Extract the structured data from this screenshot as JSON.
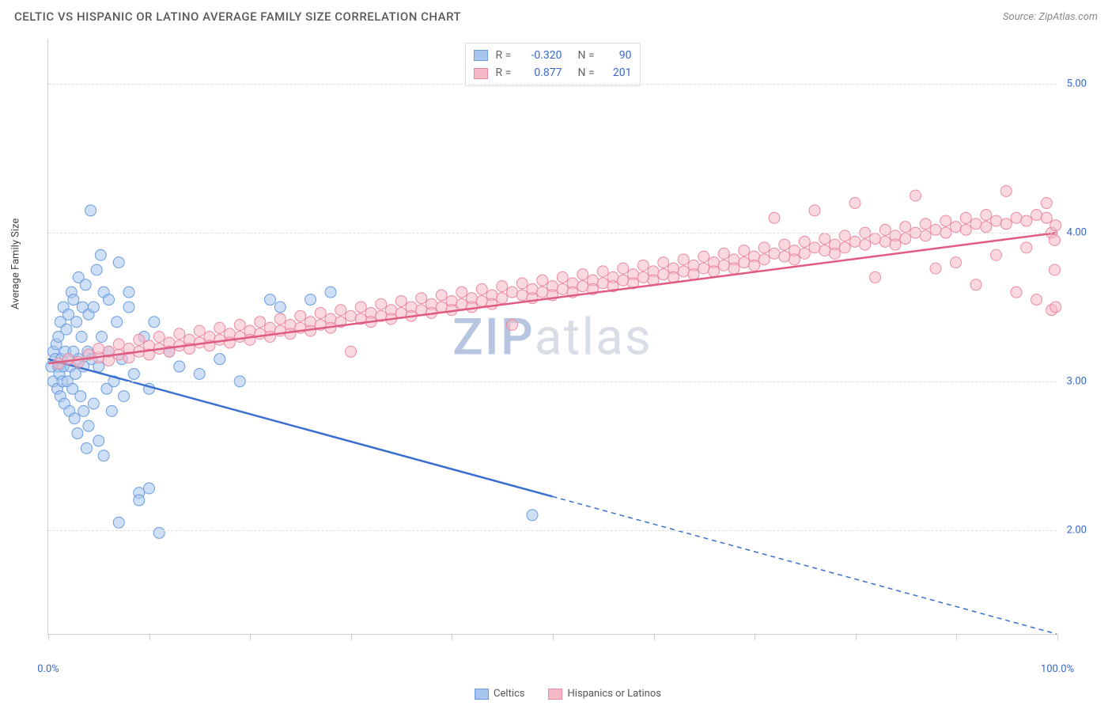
{
  "title": "CELTIC VS HISPANIC OR LATINO AVERAGE FAMILY SIZE CORRELATION CHART",
  "source": "Source: ZipAtlas.com",
  "ylabel": "Average Family Size",
  "watermark_zip": "ZIP",
  "watermark_atlas": "atlas",
  "chart": {
    "xlim": [
      0,
      100
    ],
    "ylim": [
      1.3,
      5.3
    ],
    "yticks": [
      2.0,
      3.0,
      4.0,
      5.0
    ],
    "ytick_labels": [
      "2.00",
      "3.00",
      "4.00",
      "5.00"
    ],
    "xtick_positions": [
      0,
      10,
      20,
      30,
      40,
      50,
      60,
      70,
      80,
      90,
      100
    ],
    "xtick_labels_left": "0.0%",
    "xtick_labels_right": "100.0%",
    "grid_color": "#dddddd",
    "axis_color": "#cccccc",
    "tick_label_color": "#3868c8",
    "background_color": "#ffffff",
    "series": [
      {
        "name": "Celtics",
        "color_fill": "#a7c5ed",
        "color_stroke": "#6a9de0",
        "line_color": "#3a6fd0",
        "marker_radius": 7,
        "marker_opacity": 0.55,
        "r_value": "-0.320",
        "n_value": "90",
        "trend": {
          "x1": 0,
          "y1": 3.15,
          "x2": 100,
          "y2": 1.3,
          "solid_until_x": 50
        },
        "points": [
          [
            0.3,
            3.1
          ],
          [
            0.5,
            3.2
          ],
          [
            0.5,
            3.0
          ],
          [
            0.7,
            3.15
          ],
          [
            0.8,
            3.25
          ],
          [
            0.9,
            2.95
          ],
          [
            1.0,
            3.1
          ],
          [
            1.0,
            3.3
          ],
          [
            1.1,
            3.05
          ],
          [
            1.2,
            3.4
          ],
          [
            1.2,
            2.9
          ],
          [
            1.3,
            3.15
          ],
          [
            1.4,
            3.0
          ],
          [
            1.5,
            3.5
          ],
          [
            1.5,
            3.1
          ],
          [
            1.6,
            2.85
          ],
          [
            1.7,
            3.2
          ],
          [
            1.8,
            3.35
          ],
          [
            1.9,
            3.0
          ],
          [
            2.0,
            3.15
          ],
          [
            2.0,
            3.45
          ],
          [
            2.1,
            2.8
          ],
          [
            2.2,
            3.1
          ],
          [
            2.3,
            3.6
          ],
          [
            2.4,
            2.95
          ],
          [
            2.5,
            3.2
          ],
          [
            2.5,
            3.55
          ],
          [
            2.6,
            2.75
          ],
          [
            2.7,
            3.05
          ],
          [
            2.8,
            3.4
          ],
          [
            2.9,
            2.65
          ],
          [
            3.0,
            3.15
          ],
          [
            3.0,
            3.7
          ],
          [
            3.2,
            2.9
          ],
          [
            3.3,
            3.3
          ],
          [
            3.4,
            3.5
          ],
          [
            3.5,
            2.8
          ],
          [
            3.5,
            3.1
          ],
          [
            3.7,
            3.65
          ],
          [
            3.8,
            2.55
          ],
          [
            3.9,
            3.2
          ],
          [
            4.0,
            2.7
          ],
          [
            4.0,
            3.45
          ],
          [
            4.2,
            4.15
          ],
          [
            4.3,
            3.15
          ],
          [
            4.5,
            2.85
          ],
          [
            4.5,
            3.5
          ],
          [
            4.8,
            3.75
          ],
          [
            5.0,
            3.1
          ],
          [
            5.0,
            2.6
          ],
          [
            5.2,
            3.85
          ],
          [
            5.3,
            3.3
          ],
          [
            5.5,
            2.5
          ],
          [
            5.5,
            3.6
          ],
          [
            5.8,
            2.95
          ],
          [
            6.0,
            3.2
          ],
          [
            6.0,
            3.55
          ],
          [
            6.3,
            2.8
          ],
          [
            6.5,
            3.0
          ],
          [
            6.8,
            3.4
          ],
          [
            7.0,
            3.8
          ],
          [
            7.0,
            2.05
          ],
          [
            7.3,
            3.15
          ],
          [
            7.5,
            2.9
          ],
          [
            8.0,
            3.5
          ],
          [
            8.0,
            3.6
          ],
          [
            8.5,
            3.05
          ],
          [
            9.0,
            2.25
          ],
          [
            9.0,
            2.2
          ],
          [
            9.5,
            3.3
          ],
          [
            10.0,
            2.95
          ],
          [
            10.0,
            2.28
          ],
          [
            10.5,
            3.4
          ],
          [
            11.0,
            1.98
          ],
          [
            12.0,
            3.2
          ],
          [
            13.0,
            3.1
          ],
          [
            15.0,
            3.05
          ],
          [
            17.0,
            3.15
          ],
          [
            19.0,
            3.0
          ],
          [
            22.0,
            3.55
          ],
          [
            23.0,
            3.5
          ],
          [
            26.0,
            3.55
          ],
          [
            28.0,
            3.6
          ],
          [
            48.0,
            2.1
          ]
        ]
      },
      {
        "name": "Hispanics or Latinos",
        "color_fill": "#f5b8c7",
        "color_stroke": "#ea8aa2",
        "line_color": "#e05a82",
        "marker_radius": 7,
        "marker_opacity": 0.55,
        "r_value": "0.877",
        "n_value": "201",
        "trend": {
          "x1": 0,
          "y1": 3.12,
          "x2": 100,
          "y2": 4.0,
          "solid_until_x": 100
        },
        "points": [
          [
            1,
            3.12
          ],
          [
            2,
            3.15
          ],
          [
            3,
            3.13
          ],
          [
            4,
            3.18
          ],
          [
            5,
            3.16
          ],
          [
            5,
            3.22
          ],
          [
            6,
            3.2
          ],
          [
            6,
            3.14
          ],
          [
            7,
            3.18
          ],
          [
            7,
            3.25
          ],
          [
            8,
            3.22
          ],
          [
            8,
            3.16
          ],
          [
            9,
            3.2
          ],
          [
            9,
            3.28
          ],
          [
            10,
            3.24
          ],
          [
            10,
            3.18
          ],
          [
            11,
            3.22
          ],
          [
            11,
            3.3
          ],
          [
            12,
            3.26
          ],
          [
            12,
            3.2
          ],
          [
            13,
            3.24
          ],
          [
            13,
            3.32
          ],
          [
            14,
            3.28
          ],
          [
            14,
            3.22
          ],
          [
            15,
            3.26
          ],
          [
            15,
            3.34
          ],
          [
            16,
            3.3
          ],
          [
            16,
            3.24
          ],
          [
            17,
            3.28
          ],
          [
            17,
            3.36
          ],
          [
            18,
            3.32
          ],
          [
            18,
            3.26
          ],
          [
            19,
            3.3
          ],
          [
            19,
            3.38
          ],
          [
            20,
            3.34
          ],
          [
            20,
            3.28
          ],
          [
            21,
            3.32
          ],
          [
            21,
            3.4
          ],
          [
            22,
            3.36
          ],
          [
            22,
            3.3
          ],
          [
            23,
            3.34
          ],
          [
            23,
            3.42
          ],
          [
            24,
            3.38
          ],
          [
            24,
            3.32
          ],
          [
            25,
            3.36
          ],
          [
            25,
            3.44
          ],
          [
            26,
            3.4
          ],
          [
            26,
            3.34
          ],
          [
            27,
            3.38
          ],
          [
            27,
            3.46
          ],
          [
            28,
            3.42
          ],
          [
            28,
            3.36
          ],
          [
            29,
            3.4
          ],
          [
            29,
            3.48
          ],
          [
            30,
            3.44
          ],
          [
            30,
            3.2
          ],
          [
            31,
            3.42
          ],
          [
            31,
            3.5
          ],
          [
            32,
            3.46
          ],
          [
            32,
            3.4
          ],
          [
            33,
            3.44
          ],
          [
            33,
            3.52
          ],
          [
            34,
            3.48
          ],
          [
            34,
            3.42
          ],
          [
            35,
            3.46
          ],
          [
            35,
            3.54
          ],
          [
            36,
            3.5
          ],
          [
            36,
            3.44
          ],
          [
            37,
            3.48
          ],
          [
            37,
            3.56
          ],
          [
            38,
            3.52
          ],
          [
            38,
            3.46
          ],
          [
            39,
            3.5
          ],
          [
            39,
            3.58
          ],
          [
            40,
            3.54
          ],
          [
            40,
            3.48
          ],
          [
            41,
            3.52
          ],
          [
            41,
            3.6
          ],
          [
            42,
            3.56
          ],
          [
            42,
            3.5
          ],
          [
            43,
            3.54
          ],
          [
            43,
            3.62
          ],
          [
            44,
            3.58
          ],
          [
            44,
            3.52
          ],
          [
            45,
            3.56
          ],
          [
            45,
            3.64
          ],
          [
            46,
            3.6
          ],
          [
            46,
            3.38
          ],
          [
            47,
            3.58
          ],
          [
            47,
            3.66
          ],
          [
            48,
            3.62
          ],
          [
            48,
            3.56
          ],
          [
            49,
            3.6
          ],
          [
            49,
            3.68
          ],
          [
            50,
            3.64
          ],
          [
            50,
            3.58
          ],
          [
            51,
            3.62
          ],
          [
            51,
            3.7
          ],
          [
            52,
            3.66
          ],
          [
            52,
            3.6
          ],
          [
            53,
            3.64
          ],
          [
            53,
            3.72
          ],
          [
            54,
            3.68
          ],
          [
            54,
            3.62
          ],
          [
            55,
            3.66
          ],
          [
            55,
            3.74
          ],
          [
            56,
            3.7
          ],
          [
            56,
            3.64
          ],
          [
            57,
            3.68
          ],
          [
            57,
            3.76
          ],
          [
            58,
            3.72
          ],
          [
            58,
            3.66
          ],
          [
            59,
            3.7
          ],
          [
            59,
            3.78
          ],
          [
            60,
            3.74
          ],
          [
            60,
            3.68
          ],
          [
            61,
            3.72
          ],
          [
            61,
            3.8
          ],
          [
            62,
            3.76
          ],
          [
            62,
            3.7
          ],
          [
            63,
            3.74
          ],
          [
            63,
            3.82
          ],
          [
            64,
            3.78
          ],
          [
            64,
            3.72
          ],
          [
            65,
            3.76
          ],
          [
            65,
            3.84
          ],
          [
            66,
            3.8
          ],
          [
            66,
            3.74
          ],
          [
            67,
            3.78
          ],
          [
            67,
            3.86
          ],
          [
            68,
            3.82
          ],
          [
            68,
            3.76
          ],
          [
            69,
            3.8
          ],
          [
            69,
            3.88
          ],
          [
            70,
            3.84
          ],
          [
            70,
            3.78
          ],
          [
            71,
            3.82
          ],
          [
            71,
            3.9
          ],
          [
            72,
            3.86
          ],
          [
            72,
            4.1
          ],
          [
            73,
            3.84
          ],
          [
            73,
            3.92
          ],
          [
            74,
            3.88
          ],
          [
            74,
            3.82
          ],
          [
            75,
            3.86
          ],
          [
            75,
            3.94
          ],
          [
            76,
            3.9
          ],
          [
            76,
            4.15
          ],
          [
            77,
            3.88
          ],
          [
            77,
            3.96
          ],
          [
            78,
            3.92
          ],
          [
            78,
            3.86
          ],
          [
            79,
            3.9
          ],
          [
            79,
            3.98
          ],
          [
            80,
            3.94
          ],
          [
            80,
            4.2
          ],
          [
            81,
            3.92
          ],
          [
            81,
            4.0
          ],
          [
            82,
            3.96
          ],
          [
            82,
            3.7
          ],
          [
            83,
            3.94
          ],
          [
            83,
            4.02
          ],
          [
            84,
            3.98
          ],
          [
            84,
            3.92
          ],
          [
            85,
            3.96
          ],
          [
            85,
            4.04
          ],
          [
            86,
            4.0
          ],
          [
            86,
            4.25
          ],
          [
            87,
            3.98
          ],
          [
            87,
            4.06
          ],
          [
            88,
            4.02
          ],
          [
            88,
            3.76
          ],
          [
            89,
            4.0
          ],
          [
            89,
            4.08
          ],
          [
            90,
            4.04
          ],
          [
            90,
            3.8
          ],
          [
            91,
            4.02
          ],
          [
            91,
            4.1
          ],
          [
            92,
            4.06
          ],
          [
            92,
            3.65
          ],
          [
            93,
            4.04
          ],
          [
            93,
            4.12
          ],
          [
            94,
            4.08
          ],
          [
            94,
            3.85
          ],
          [
            95,
            4.06
          ],
          [
            95,
            4.28
          ],
          [
            96,
            4.1
          ],
          [
            96,
            3.6
          ],
          [
            97,
            4.08
          ],
          [
            97,
            3.9
          ],
          [
            98,
            4.12
          ],
          [
            98,
            3.55
          ],
          [
            99,
            4.1
          ],
          [
            99,
            4.2
          ],
          [
            99.5,
            3.48
          ],
          [
            99.5,
            4.0
          ],
          [
            99.8,
            3.95
          ],
          [
            99.8,
            3.75
          ],
          [
            99.9,
            3.5
          ],
          [
            99.9,
            4.05
          ]
        ]
      }
    ]
  },
  "stats_labels": {
    "r": "R =",
    "n": "N ="
  },
  "bottom_legend": [
    "Celtics",
    "Hispanics or Latinos"
  ]
}
